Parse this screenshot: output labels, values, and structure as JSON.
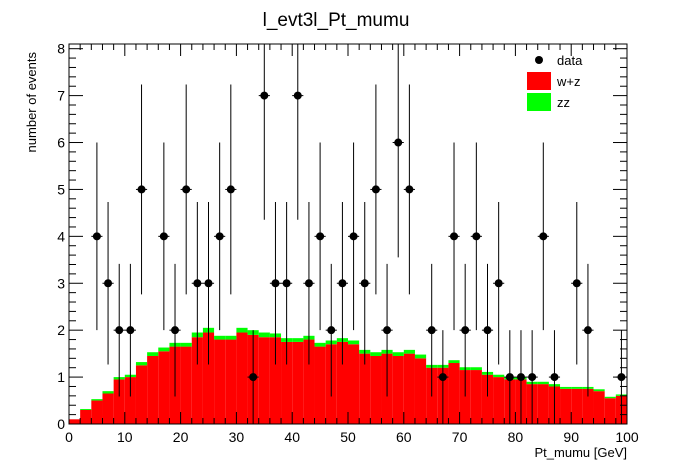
{
  "chart_data": {
    "type": "histogram",
    "title": "l_evt3l_Pt_mumu",
    "xlabel": "Pt_mumu [GeV]",
    "ylabel": "number of events",
    "xlim": [
      0,
      100
    ],
    "ylim": [
      0,
      8.1
    ],
    "bin_width": 2,
    "x_ticks": [
      0,
      10,
      20,
      30,
      40,
      50,
      60,
      70,
      80,
      90,
      100
    ],
    "y_ticks": [
      0,
      1,
      2,
      3,
      4,
      5,
      6,
      7,
      8
    ],
    "legend_position": "top-right",
    "legend": [
      {
        "label": "data",
        "style": "marker"
      },
      {
        "label": "w+z",
        "style": "fill",
        "color": "#ff0000"
      },
      {
        "label": "zz",
        "style": "fill",
        "color": "#00ff00"
      }
    ],
    "stack": [
      {
        "name": "w+z",
        "color": "#ff0000",
        "values": [
          0.1,
          0.3,
          0.5,
          0.65,
          0.95,
          1.0,
          1.25,
          1.45,
          1.55,
          1.65,
          1.65,
          1.85,
          1.95,
          1.8,
          1.8,
          1.95,
          1.9,
          1.85,
          1.85,
          1.75,
          1.75,
          1.8,
          1.65,
          1.7,
          1.75,
          1.7,
          1.5,
          1.45,
          1.5,
          1.45,
          1.5,
          1.4,
          1.2,
          1.2,
          1.3,
          1.15,
          1.15,
          1.05,
          1.0,
          0.95,
          0.95,
          0.85,
          0.85,
          0.8,
          0.75,
          0.75,
          0.75,
          0.7,
          0.55,
          0.6
        ]
      },
      {
        "name": "zz",
        "color": "#00ff00",
        "values": [
          0.0,
          0.02,
          0.03,
          0.05,
          0.05,
          0.05,
          0.07,
          0.08,
          0.08,
          0.08,
          0.08,
          0.1,
          0.1,
          0.08,
          0.08,
          0.1,
          0.1,
          0.1,
          0.08,
          0.08,
          0.08,
          0.08,
          0.08,
          0.08,
          0.08,
          0.08,
          0.08,
          0.08,
          0.08,
          0.08,
          0.08,
          0.08,
          0.06,
          0.06,
          0.06,
          0.06,
          0.06,
          0.06,
          0.05,
          0.05,
          0.05,
          0.05,
          0.05,
          0.05,
          0.04,
          0.04,
          0.04,
          0.04,
          0.03,
          0.03
        ]
      }
    ],
    "data_points": [
      {
        "x": 5,
        "y": 4
      },
      {
        "x": 7,
        "y": 3
      },
      {
        "x": 9,
        "y": 2
      },
      {
        "x": 11,
        "y": 2
      },
      {
        "x": 13,
        "y": 5
      },
      {
        "x": 17,
        "y": 4
      },
      {
        "x": 19,
        "y": 2
      },
      {
        "x": 21,
        "y": 5
      },
      {
        "x": 23,
        "y": 3
      },
      {
        "x": 25,
        "y": 3
      },
      {
        "x": 27,
        "y": 4
      },
      {
        "x": 29,
        "y": 5
      },
      {
        "x": 33,
        "y": 1
      },
      {
        "x": 35,
        "y": 7
      },
      {
        "x": 37,
        "y": 3
      },
      {
        "x": 39,
        "y": 3
      },
      {
        "x": 41,
        "y": 7
      },
      {
        "x": 43,
        "y": 3
      },
      {
        "x": 45,
        "y": 4
      },
      {
        "x": 47,
        "y": 2
      },
      {
        "x": 49,
        "y": 3
      },
      {
        "x": 51,
        "y": 4
      },
      {
        "x": 53,
        "y": 3
      },
      {
        "x": 55,
        "y": 5
      },
      {
        "x": 57,
        "y": 2
      },
      {
        "x": 59,
        "y": 6
      },
      {
        "x": 61,
        "y": 5
      },
      {
        "x": 65,
        "y": 2
      },
      {
        "x": 67,
        "y": 1
      },
      {
        "x": 69,
        "y": 4
      },
      {
        "x": 71,
        "y": 2
      },
      {
        "x": 73,
        "y": 4
      },
      {
        "x": 75,
        "y": 2
      },
      {
        "x": 77,
        "y": 3
      },
      {
        "x": 79,
        "y": 1
      },
      {
        "x": 81,
        "y": 1
      },
      {
        "x": 83,
        "y": 1
      },
      {
        "x": 85,
        "y": 4
      },
      {
        "x": 87,
        "y": 1
      },
      {
        "x": 91,
        "y": 3
      },
      {
        "x": 93,
        "y": 2
      },
      {
        "x": 99,
        "y": 1
      }
    ]
  }
}
